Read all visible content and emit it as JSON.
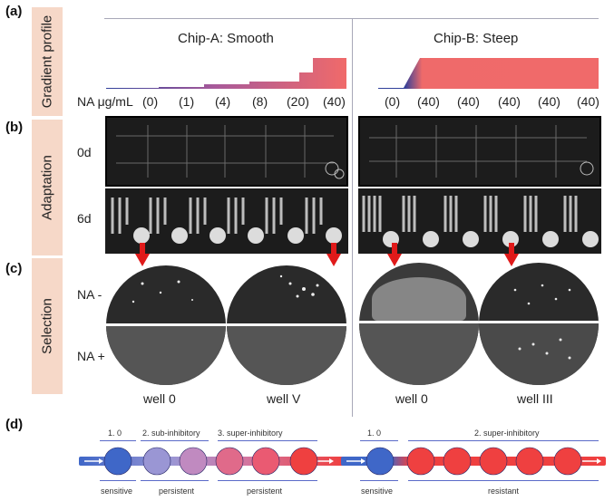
{
  "panel_labels": {
    "a": "(a)",
    "b": "(b)",
    "c": "(c)",
    "d": "(d)"
  },
  "side_labels": {
    "gradient": "Gradient profile",
    "adaptation": "Adaptation",
    "selection": "Selection"
  },
  "chip_titles": {
    "a": "Chip-A: Smooth",
    "b": "Chip-B: Steep"
  },
  "na_label": "NA μg/mL",
  "chip_a_concentrations": [
    "(0)",
    "(1)",
    "(4)",
    "(8)",
    "(20)",
    "(40)"
  ],
  "chip_b_concentrations": [
    "(0)",
    "(40)",
    "(40)",
    "(40)",
    "(40)",
    "(40)"
  ],
  "time_labels": {
    "day0": "0d",
    "day6": "6d"
  },
  "selection_rows": {
    "minus": "NA -",
    "plus": "NA +"
  },
  "well_labels": [
    "well 0",
    "well V",
    "well 0",
    "well III"
  ],
  "diagram_a": {
    "top_labels": [
      "1. 0",
      "2. sub-inhibitory",
      "3. super-inhibitory"
    ],
    "bottom_labels": [
      "sensitive",
      "persistent",
      "persistent"
    ],
    "node_colors": [
      "#3f67c8",
      "#9a96d4",
      "#c08ac0",
      "#e06a8a",
      "#ea5a72",
      "#ef4040"
    ]
  },
  "diagram_b": {
    "top_labels": [
      "1. 0",
      "2. super-inhibitory"
    ],
    "bottom_labels": [
      "sensitive",
      "resistant"
    ],
    "node_colors": [
      "#3f67c8",
      "#ef4040",
      "#ef4040",
      "#ef4040",
      "#ef4040",
      "#ef4040"
    ]
  },
  "colors": {
    "gradient_low": "#2f3f9a",
    "gradient_high": "#f06a6a",
    "arrow": "#e01a1a",
    "label_bg": "#f6d8c8"
  }
}
